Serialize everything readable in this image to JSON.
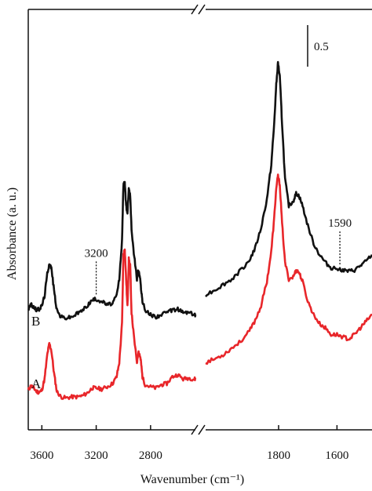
{
  "chart_data": {
    "type": "line",
    "xlabel": "Wavenumber (cm⁻¹)",
    "ylabel": "Absorbance (a. u.)",
    "x_reversed": true,
    "x_axis_break": true,
    "xlim_left_segment": [
      3700,
      2470
    ],
    "xlim_right_segment": [
      2050,
      1480
    ],
    "x_ticks": [
      {
        "value": 3600,
        "label": "3600"
      },
      {
        "value": 3200,
        "label": "3200"
      },
      {
        "value": 2800,
        "label": "2800"
      },
      {
        "value": 1800,
        "label": "1800"
      },
      {
        "value": 1600,
        "label": "1600"
      }
    ],
    "scale_bar": {
      "value": 0.5,
      "label": "0.5"
    },
    "annotations": [
      {
        "x": 3200,
        "label": "3200"
      },
      {
        "x": 1590,
        "label": "1590"
      }
    ],
    "y_range": [
      0.0,
      3.6
    ],
    "series": [
      {
        "name": "A",
        "color": "#e8262a",
        "points": [
          [
            3700,
            0.3
          ],
          [
            3680,
            0.34
          ],
          [
            3660,
            0.32
          ],
          [
            3640,
            0.29
          ],
          [
            3620,
            0.28
          ],
          [
            3600,
            0.3
          ],
          [
            3580,
            0.4
          ],
          [
            3560,
            0.62
          ],
          [
            3545,
            0.72
          ],
          [
            3530,
            0.66
          ],
          [
            3510,
            0.45
          ],
          [
            3490,
            0.29
          ],
          [
            3460,
            0.24
          ],
          [
            3420,
            0.23
          ],
          [
            3380,
            0.24
          ],
          [
            3340,
            0.24
          ],
          [
            3300,
            0.25
          ],
          [
            3260,
            0.28
          ],
          [
            3230,
            0.32
          ],
          [
            3200,
            0.32
          ],
          [
            3160,
            0.31
          ],
          [
            3120,
            0.33
          ],
          [
            3080,
            0.36
          ],
          [
            3050,
            0.42
          ],
          [
            3030,
            0.55
          ],
          [
            3010,
            0.9
          ],
          [
            3000,
            1.52
          ],
          [
            2990,
            1.58
          ],
          [
            2980,
            1.3
          ],
          [
            2970,
            1.05
          ],
          [
            2960,
            1.48
          ],
          [
            2950,
            1.42
          ],
          [
            2940,
            1.0
          ],
          [
            2920,
            0.75
          ],
          [
            2900,
            0.55
          ],
          [
            2890,
            0.65
          ],
          [
            2880,
            0.62
          ],
          [
            2870,
            0.55
          ],
          [
            2860,
            0.42
          ],
          [
            2840,
            0.35
          ],
          [
            2800,
            0.33
          ],
          [
            2760,
            0.32
          ],
          [
            2720,
            0.35
          ],
          [
            2680,
            0.36
          ],
          [
            2640,
            0.42
          ],
          [
            2600,
            0.44
          ],
          [
            2560,
            0.4
          ],
          [
            2520,
            0.41
          ],
          [
            2480,
            0.4
          ],
          [
            2470,
            0.4
          ]
        ]
      },
      {
        "name": "B",
        "color": "#111111",
        "points": [
          [
            3700,
            1.03
          ],
          [
            3680,
            1.07
          ],
          [
            3660,
            1.05
          ],
          [
            3640,
            1.02
          ],
          [
            3620,
            1.03
          ],
          [
            3600,
            1.06
          ],
          [
            3580,
            1.15
          ],
          [
            3560,
            1.35
          ],
          [
            3545,
            1.44
          ],
          [
            3530,
            1.4
          ],
          [
            3510,
            1.2
          ],
          [
            3490,
            1.02
          ],
          [
            3460,
            0.96
          ],
          [
            3420,
            0.95
          ],
          [
            3380,
            0.96
          ],
          [
            3340,
            0.99
          ],
          [
            3300,
            1.02
          ],
          [
            3260,
            1.07
          ],
          [
            3230,
            1.11
          ],
          [
            3200,
            1.12
          ],
          [
            3160,
            1.1
          ],
          [
            3120,
            1.07
          ],
          [
            3080,
            1.08
          ],
          [
            3050,
            1.15
          ],
          [
            3030,
            1.3
          ],
          [
            3010,
            1.65
          ],
          [
            3000,
            2.14
          ],
          [
            2990,
            2.18
          ],
          [
            2980,
            1.95
          ],
          [
            2970,
            1.9
          ],
          [
            2960,
            2.12
          ],
          [
            2950,
            2.06
          ],
          [
            2940,
            1.75
          ],
          [
            2920,
            1.5
          ],
          [
            2900,
            1.3
          ],
          [
            2890,
            1.38
          ],
          [
            2880,
            1.33
          ],
          [
            2870,
            1.22
          ],
          [
            2860,
            1.1
          ],
          [
            2840,
            1.02
          ],
          [
            2800,
            0.98
          ],
          [
            2760,
            0.96
          ],
          [
            2720,
            0.98
          ],
          [
            2680,
            1.0
          ],
          [
            2640,
            1.02
          ],
          [
            2600,
            1.03
          ],
          [
            2560,
            1.0
          ],
          [
            2520,
            1.0
          ],
          [
            2480,
            0.98
          ],
          [
            2470,
            0.98
          ]
        ]
      }
    ],
    "series_right_segment": [
      {
        "name": "A",
        "color": "#e8262a",
        "points": [
          [
            2050,
            0.55
          ],
          [
            2020,
            0.58
          ],
          [
            1990,
            0.62
          ],
          [
            1960,
            0.68
          ],
          [
            1930,
            0.74
          ],
          [
            1900,
            0.83
          ],
          [
            1880,
            0.93
          ],
          [
            1860,
            1.06
          ],
          [
            1840,
            1.28
          ],
          [
            1825,
            1.55
          ],
          [
            1815,
            1.85
          ],
          [
            1808,
            2.12
          ],
          [
            1802,
            2.23
          ],
          [
            1796,
            2.15
          ],
          [
            1788,
            1.8
          ],
          [
            1778,
            1.45
          ],
          [
            1765,
            1.3
          ],
          [
            1750,
            1.32
          ],
          [
            1740,
            1.38
          ],
          [
            1730,
            1.36
          ],
          [
            1718,
            1.28
          ],
          [
            1700,
            1.1
          ],
          [
            1680,
            0.98
          ],
          [
            1660,
            0.9
          ],
          [
            1640,
            0.86
          ],
          [
            1620,
            0.8
          ],
          [
            1600,
            0.8
          ],
          [
            1580,
            0.78
          ],
          [
            1560,
            0.76
          ],
          [
            1540,
            0.8
          ],
          [
            1520,
            0.86
          ],
          [
            1500,
            0.92
          ],
          [
            1480,
            0.98
          ]
        ]
      },
      {
        "name": "B",
        "color": "#111111",
        "points": [
          [
            2050,
            1.16
          ],
          [
            2020,
            1.2
          ],
          [
            1990,
            1.25
          ],
          [
            1960,
            1.3
          ],
          [
            1930,
            1.38
          ],
          [
            1900,
            1.47
          ],
          [
            1880,
            1.58
          ],
          [
            1860,
            1.76
          ],
          [
            1840,
            2.02
          ],
          [
            1825,
            2.33
          ],
          [
            1815,
            2.7
          ],
          [
            1808,
            3.05
          ],
          [
            1802,
            3.25
          ],
          [
            1796,
            3.12
          ],
          [
            1788,
            2.7
          ],
          [
            1778,
            2.2
          ],
          [
            1765,
            1.96
          ],
          [
            1750,
            2.0
          ],
          [
            1740,
            2.07
          ],
          [
            1730,
            2.05
          ],
          [
            1718,
            1.96
          ],
          [
            1700,
            1.78
          ],
          [
            1680,
            1.62
          ],
          [
            1660,
            1.52
          ],
          [
            1640,
            1.45
          ],
          [
            1620,
            1.4
          ],
          [
            1600,
            1.4
          ],
          [
            1580,
            1.38
          ],
          [
            1560,
            1.37
          ],
          [
            1540,
            1.38
          ],
          [
            1520,
            1.42
          ],
          [
            1500,
            1.46
          ],
          [
            1480,
            1.52
          ]
        ]
      }
    ],
    "curve_labels": [
      {
        "series": "B",
        "label": "B"
      },
      {
        "series": "A",
        "label": "A"
      }
    ]
  }
}
